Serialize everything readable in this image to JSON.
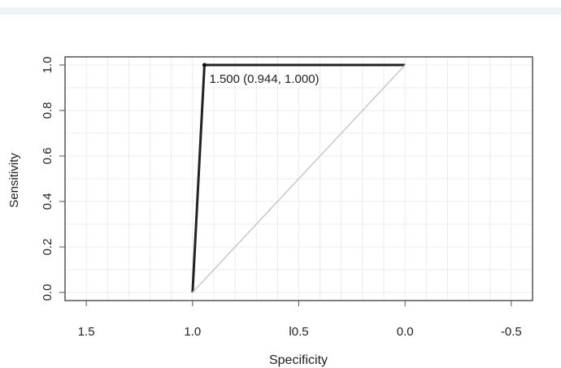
{
  "chart_data": {
    "type": "line",
    "xlabel": "Specificity",
    "ylabel": "Sensitivity",
    "xlim": [
      1.6,
      -0.6
    ],
    "ylim": [
      0.0,
      1.0
    ],
    "x_reversed": true,
    "x_ticks": [
      1.5,
      1.0,
      0.5,
      0.0,
      -0.5
    ],
    "x_tick_labels": [
      "1.5",
      "1.0",
      "l0.5",
      "0.0",
      "-0.5"
    ],
    "y_ticks": [
      0.0,
      0.2,
      0.4,
      0.6,
      0.8,
      1.0
    ],
    "y_tick_labels": [
      "0.0",
      "0.2",
      "0.4",
      "0.6",
      "0.8",
      "1.0"
    ],
    "grid": true,
    "series": [
      {
        "role": "roc-curve",
        "color": "#222222",
        "points": [
          [
            1.0,
            0.0
          ],
          [
            0.944,
            1.0
          ],
          [
            0.0,
            1.0
          ]
        ]
      },
      {
        "role": "diagonal-reference",
        "color": "#c8c8c8",
        "points": [
          [
            1.0,
            0.0
          ],
          [
            0.0,
            1.0
          ]
        ]
      }
    ],
    "threshold_point": {
      "x": 0.944,
      "y": 1.0
    },
    "annotation": "1.500 (0.944, 1.000)"
  }
}
